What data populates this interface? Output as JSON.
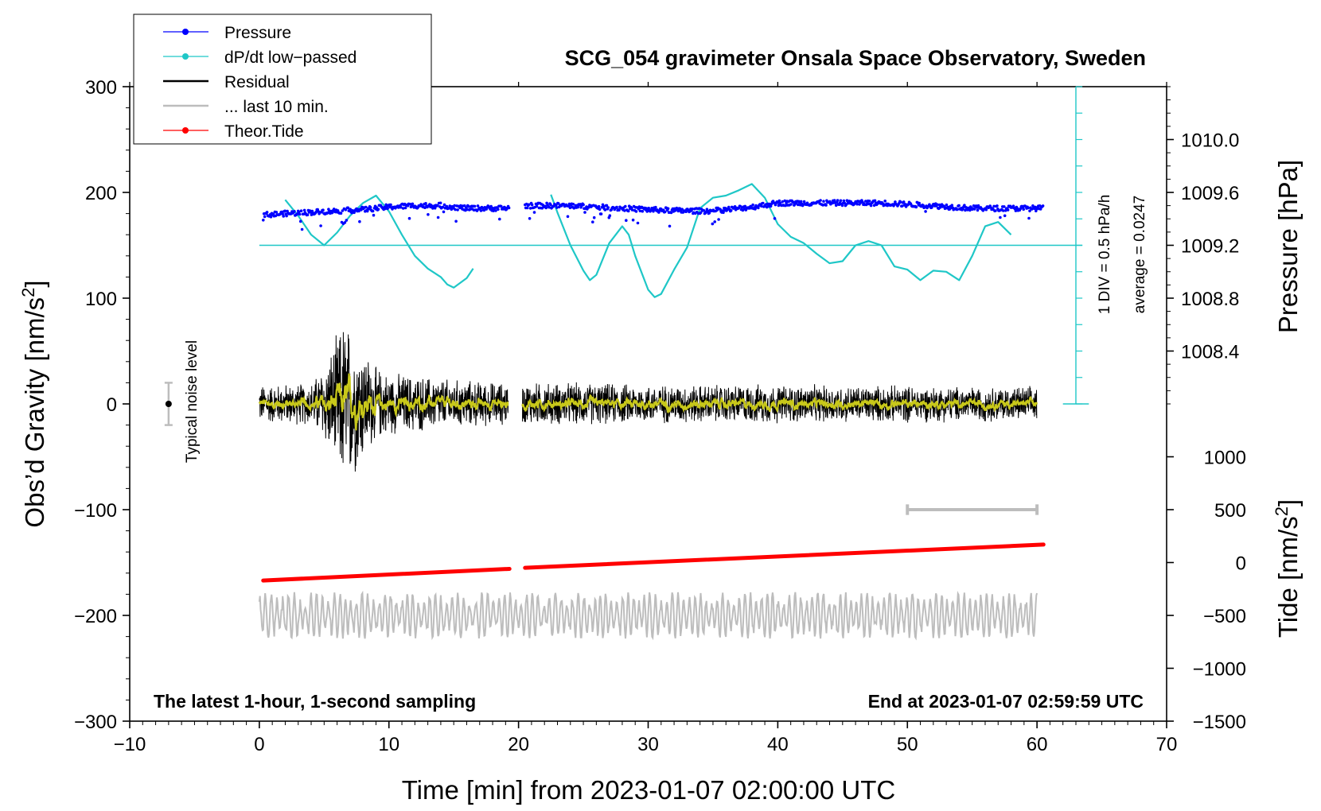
{
  "chart_data": {
    "type": "line",
    "title": "SCG_054 gravimeter Onsala Space Observatory, Sweden",
    "subtitle_left": "The latest 1-hour, 1-second sampling",
    "subtitle_right": "End at 2023-01-07 02:59:59 UTC",
    "xlabel": "Time [min] from 2023-01-07 02:00:00 UTC",
    "xlim": [
      -10,
      70
    ],
    "x_ticks": [
      "−10",
      "0",
      "10",
      "20",
      "30",
      "40",
      "50",
      "60",
      "70"
    ],
    "left_axis": {
      "label_main": "Obs’d Gravity [nm/s",
      "label_sup": "2",
      "label_end": "]",
      "ylim": [
        -300,
        300
      ],
      "ticks": [
        "300",
        "200",
        "100",
        "0",
        "−100",
        "−200",
        "−300"
      ]
    },
    "right_pressure_axis": {
      "label": "Pressure [hPa]",
      "range_hPa": [
        1008.0,
        1010.4
      ],
      "ticks": [
        "1010.0",
        "1009.6",
        "1009.2",
        "1008.8",
        "1008.4"
      ]
    },
    "right_tide_axis": {
      "label_main": "Tide [nm/s",
      "label_sup": "2",
      "label_end": "]",
      "ticks": [
        "1000",
        "500",
        "0",
        "−500",
        "−1000",
        "−1500"
      ]
    },
    "dpdt_scale": {
      "div_label": "1 DIV = 0.5 hPa/h",
      "average_label": "average = 0.0247"
    },
    "noise_label": "Typical noise level",
    "noise_level_range": [
      -20,
      20
    ],
    "last10_bar_minutes": [
      50,
      60
    ],
    "legend": [
      {
        "name": "Pressure",
        "color": "#0000ff",
        "marker": true
      },
      {
        "name": "dP/dt low−passed",
        "color": "#1fc7c7",
        "marker": true
      },
      {
        "name": "Residual",
        "color": "#000000",
        "marker": false
      },
      {
        "name": "... last 10 min.",
        "color": "#bdbdbd",
        "marker": false
      },
      {
        "name": "Theor.Tide",
        "color": "#ff0000",
        "marker": true
      }
    ],
    "series": [
      {
        "name": "Pressure",
        "unit": "hPa",
        "segments": [
          [
            0.3,
            19.3
          ],
          [
            20.5,
            60.5
          ]
        ],
        "x": [
          0.3,
          2,
          4,
          6,
          8,
          10,
          12,
          14,
          16,
          19,
          20.5,
          24,
          28,
          30,
          33,
          35,
          38,
          40,
          42,
          45,
          48,
          52,
          55,
          58,
          60.5
        ],
        "values": [
          1009.43,
          1009.44,
          1009.45,
          1009.46,
          1009.47,
          1009.49,
          1009.5,
          1009.5,
          1009.48,
          1009.48,
          1009.5,
          1009.5,
          1009.48,
          1009.47,
          1009.46,
          1009.46,
          1009.49,
          1009.52,
          1009.52,
          1009.52,
          1009.52,
          1009.5,
          1009.48,
          1009.48,
          1009.48
        ]
      },
      {
        "name": "dP/dt low-passed",
        "unit": "plot units",
        "x": [
          2,
          3,
          4,
          5,
          6,
          7,
          8,
          9,
          10,
          11,
          12,
          13,
          14,
          14.5,
          15,
          16,
          16.5,
          null,
          22.5,
          23,
          24,
          25,
          25.5,
          26,
          27,
          28,
          28.5,
          29,
          30,
          30.5,
          31,
          32,
          33,
          34,
          35,
          36,
          37,
          38,
          39,
          40,
          41,
          42,
          43,
          44,
          45,
          46,
          47,
          48,
          49,
          50,
          51,
          52,
          53,
          54,
          55,
          56,
          57,
          58
        ],
        "values": [
          193,
          178,
          160,
          150,
          162,
          178,
          190,
          197,
          182,
          160,
          140,
          128,
          120,
          113,
          110,
          119,
          128,
          null,
          198,
          181,
          150,
          126,
          117,
          122,
          152,
          168,
          160,
          140,
          108,
          101,
          104,
          127,
          148,
          185,
          195,
          197,
          202,
          208,
          195,
          170,
          158,
          152,
          142,
          133,
          135,
          150,
          154,
          150,
          130,
          127,
          117,
          126,
          125,
          117,
          140,
          168,
          172,
          160
        ]
      },
      {
        "name": "Residual",
        "unit": "nm/s2",
        "segments": [
          [
            0,
            19.2
          ],
          [
            20.3,
            60
          ]
        ],
        "envelope_x": [
          0,
          4,
          5,
          6,
          6.5,
          7,
          8,
          9,
          10,
          12,
          15,
          19.2,
          20.3,
          25,
          30,
          35,
          40,
          45,
          50,
          55,
          60
        ],
        "envelope_amplitude": [
          20,
          22,
          40,
          70,
          90,
          80,
          60,
          38,
          32,
          30,
          25,
          22,
          22,
          22,
          20,
          20,
          20,
          19,
          19,
          18,
          18
        ]
      },
      {
        "name": "... last 10 min.",
        "unit": "nm/s2",
        "baseline": -200,
        "x_range": [
          0,
          60
        ],
        "envelope_amplitude": 22
      },
      {
        "name": "Theor.Tide",
        "unit": "nm/s2",
        "segments": [
          [
            0.3,
            19.3
          ],
          [
            20.5,
            60.5
          ]
        ],
        "x": [
          0.3,
          19.3,
          20.5,
          60.5
        ],
        "values": [
          -167,
          -156,
          -155,
          -133
        ]
      }
    ]
  }
}
